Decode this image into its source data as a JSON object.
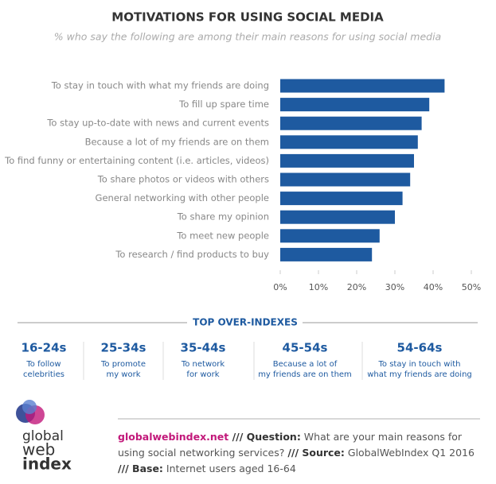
{
  "chart_data": {
    "type": "hbar",
    "title": "MOTIVATIONS FOR USING SOCIAL MEDIA",
    "subtitle": "% who say the following are among their main reasons for using social media",
    "categories": [
      "To stay in touch with what my friends are doing",
      "To fill up spare time",
      "To stay up-to-date with news and current events",
      "Because a lot of my friends are on them",
      "To find funny or entertaining content (i.e. articles, videos)",
      "To share photos or videos with others",
      "General networking with other people",
      "To share my opinion",
      "To meet new people",
      "To research / find products to buy"
    ],
    "values": [
      43,
      39,
      37,
      36,
      35,
      34,
      32,
      30,
      26,
      24
    ],
    "color": "#1e5aa0",
    "xlim": [
      0,
      50
    ],
    "xticks": [
      {
        "value": 0,
        "label": "0%"
      },
      {
        "value": 10,
        "label": "10%"
      },
      {
        "value": 20,
        "label": "20%"
      },
      {
        "value": 30,
        "label": "30%"
      },
      {
        "value": 40,
        "label": "40%"
      },
      {
        "value": 50,
        "label": "50%"
      }
    ],
    "grid": false
  },
  "over_indexes": {
    "title": "TOP OVER-INDEXES",
    "groups": [
      {
        "age": "16-24s",
        "lines": [
          "To follow",
          "celebrities"
        ]
      },
      {
        "age": "25-34s",
        "lines": [
          "To promote",
          "my work"
        ]
      },
      {
        "age": "35-44s",
        "lines": [
          "To network",
          "for work"
        ]
      },
      {
        "age": "45-54s",
        "lines": [
          "Because a lot of",
          "my friends are on them"
        ]
      },
      {
        "age": "54-64s",
        "lines": [
          "To stay in touch with",
          "what my friends are doing"
        ]
      }
    ]
  },
  "footer": {
    "logo": [
      "global",
      "web",
      "index"
    ],
    "segments": [
      "globalwebindex.net",
      " /// Question:",
      " What are your main reasons for using social networking services? ",
      " /// Source:",
      " GlobalWebIndex Q1 2016 ",
      "/// Base:",
      " Internet users aged 16-64"
    ]
  }
}
